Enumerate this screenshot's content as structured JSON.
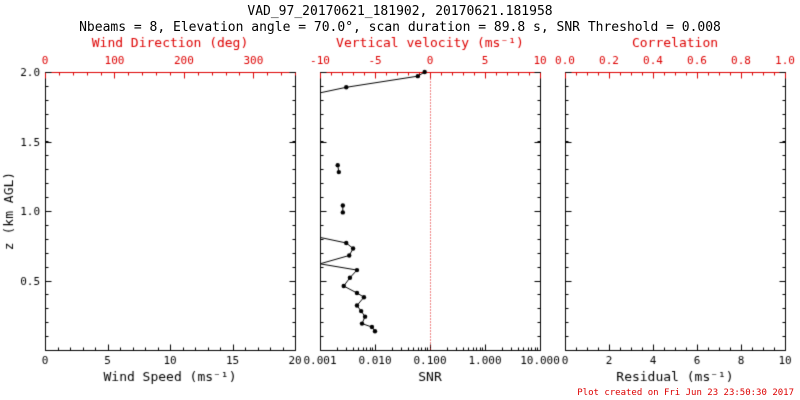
{
  "header": {
    "title": "VAD_97_20170621_181902, 20170621.181958",
    "subtitle": "Nbeams = 8, Elevation angle = 70.0°, scan duration = 89.8 s, SNR Threshold = 0.008"
  },
  "footer": {
    "created": "Plot created on Fri Jun 23 23:50:30 2017"
  },
  "colors": {
    "axis": "#000000",
    "secondary_axis": "#dd0000",
    "data": "#000000",
    "background": "#ffffff"
  },
  "ylabel": "z (km AGL)",
  "y_range": [
    0,
    2
  ],
  "y_major_ticks": [
    0,
    0.5,
    1,
    1.5,
    2
  ],
  "y_tick_labels": [
    "",
    "0.5",
    "1.0",
    "1.5",
    "2.0"
  ],
  "y_minor_step": 0.1,
  "chart_data": [
    {
      "type": "line",
      "name": "wind-speed-panel",
      "x_bottom": {
        "label": "Wind Speed (ms⁻¹)",
        "scale": "linear",
        "range": [
          0,
          20
        ],
        "ticks": [
          0,
          5,
          10,
          15,
          20
        ],
        "tick_labels": [
          "0",
          "5",
          "10",
          "15",
          "20"
        ],
        "minor_step": 1
      },
      "x_top": {
        "label": "Wind Direction (deg)",
        "scale": "linear",
        "range": [
          0,
          360
        ],
        "ticks": [
          0,
          100,
          200,
          300
        ],
        "tick_labels": [
          "0",
          "100",
          "200",
          "300"
        ],
        "minor_step": 20
      },
      "series": []
    },
    {
      "type": "line",
      "name": "snr-panel",
      "x_bottom": {
        "label": "SNR",
        "scale": "log",
        "range": [
          0.001,
          10
        ],
        "ticks": [
          0.001,
          0.01,
          0.1,
          1,
          10
        ],
        "tick_labels": [
          "0.001",
          "0.010",
          "0.100",
          "1.000",
          "10.000"
        ]
      },
      "x_top": {
        "label": "Vertical velocity (ms⁻¹)",
        "scale": "linear",
        "range": [
          -10,
          10
        ],
        "ticks": [
          -10,
          -5,
          0,
          5,
          10
        ],
        "tick_labels": [
          "-10",
          "-5",
          "0",
          "5",
          "10"
        ],
        "minor_step": 1
      },
      "ref_line": {
        "x_snr": 0.1,
        "meaning": "vertical velocity = 0",
        "style": "dotted",
        "color": "#dd0000"
      },
      "series": [
        {
          "name": "snr-profile",
          "marker": "circle",
          "color": "#000000",
          "x_units": "SNR",
          "y_units": "km AGL",
          "segments": [
            [
              [
                0.001,
                1.85
              ],
              [
                0.003,
                1.89
              ],
              [
                0.06,
                1.97
              ],
              [
                0.08,
                2.0
              ]
            ],
            [
              [
                0.0021,
                1.33
              ],
              [
                0.0022,
                1.28
              ]
            ],
            [
              [
                0.0026,
                1.04
              ],
              [
                0.0026,
                0.99
              ]
            ],
            [
              [
                0.001,
                0.81
              ],
              [
                0.003,
                0.77
              ],
              [
                0.004,
                0.73
              ],
              [
                0.0034,
                0.68
              ],
              [
                0.001,
                0.62
              ],
              [
                0.0047,
                0.575
              ],
              [
                0.0035,
                0.52
              ],
              [
                0.0027,
                0.46
              ],
              [
                0.0047,
                0.41
              ],
              [
                0.0063,
                0.38
              ],
              [
                0.0047,
                0.32
              ],
              [
                0.0056,
                0.28
              ],
              [
                0.0066,
                0.24
              ],
              [
                0.0058,
                0.19
              ],
              [
                0.0088,
                0.165
              ],
              [
                0.01,
                0.135
              ]
            ]
          ]
        }
      ]
    },
    {
      "type": "line",
      "name": "residual-panel",
      "x_bottom": {
        "label": "Residual (ms⁻¹)",
        "scale": "linear",
        "range": [
          0,
          10
        ],
        "ticks": [
          0,
          2,
          4,
          6,
          8,
          10
        ],
        "tick_labels": [
          "0",
          "2",
          "4",
          "6",
          "8",
          "10"
        ],
        "minor_step": 0.5
      },
      "x_top": {
        "label": "Correlation",
        "scale": "linear",
        "range": [
          0,
          1
        ],
        "ticks": [
          0,
          0.2,
          0.4,
          0.6,
          0.8,
          1
        ],
        "tick_labels": [
          "0.0",
          "0.2",
          "0.4",
          "0.6",
          "0.8",
          "1.0"
        ],
        "minor_step": 0.05
      },
      "series": []
    }
  ]
}
